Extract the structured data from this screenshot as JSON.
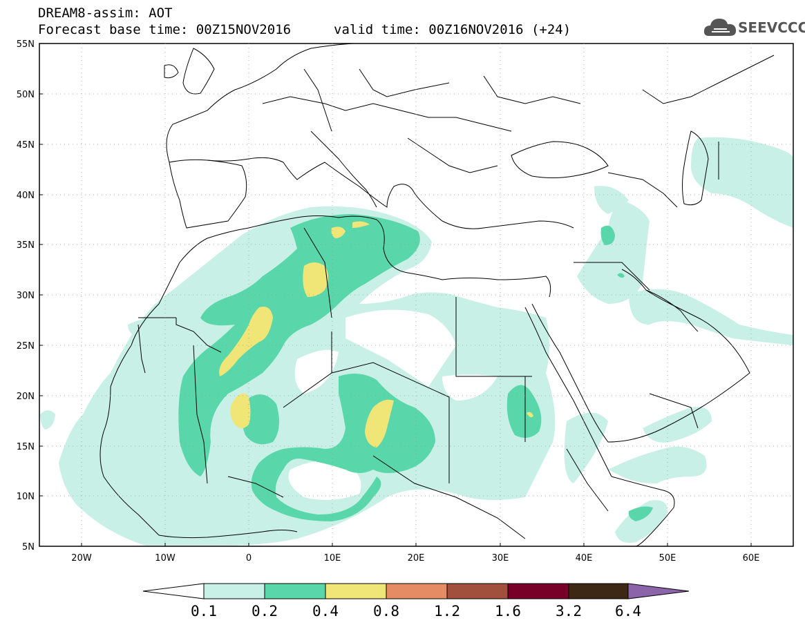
{
  "header": {
    "model_line": "DREAM8-assim: AOT",
    "base_time": "Forecast base time: 00Z15NOV2016",
    "valid_time": "valid time: 00Z16NOV2016 (+24)"
  },
  "logo": {
    "text": "SEEVCCC",
    "icon": "cloud-icon"
  },
  "map": {
    "projection": "lat-lon",
    "lon_range": [
      -25,
      65
    ],
    "lat_range": [
      5,
      55
    ],
    "lat_labels": [
      "55N",
      "50N",
      "45N",
      "40N",
      "35N",
      "30N",
      "25N",
      "20N",
      "15N",
      "10N",
      "5N"
    ],
    "lon_labels": [
      "20W",
      "10W",
      "0",
      "10E",
      "20E",
      "30E",
      "40E",
      "50E",
      "60E"
    ]
  },
  "colorbar": {
    "levels": [
      "0.1",
      "0.2",
      "0.4",
      "0.8",
      "1.2",
      "1.6",
      "3.2",
      "6.4"
    ],
    "colors": [
      "#c8f0e6",
      "#5ad7aa",
      "#f0e678",
      "#e68c64",
      "#a0503c",
      "#780028",
      "#3c2814",
      "#8c64aa"
    ]
  }
}
